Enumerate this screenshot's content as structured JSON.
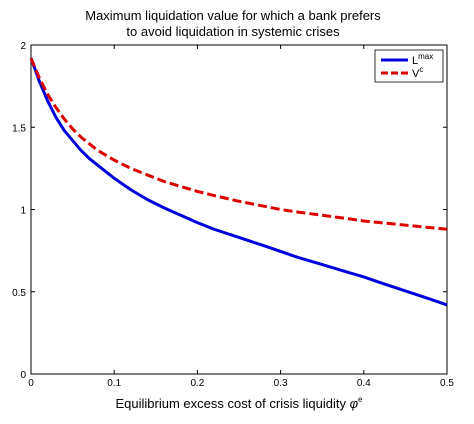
{
  "chart_data": {
    "type": "line",
    "title": [
      "Maximum liquidation value for which a bank prefers",
      "to avoid liquidation in systemic crises"
    ],
    "xlabel": "Equilibrium excess cost of crisis liquidity ",
    "xlabel_symbol": "φ",
    "xlabel_sup": "e",
    "ylabel": "",
    "xlim": [
      0,
      0.5
    ],
    "ylim": [
      0,
      2
    ],
    "xticks": [
      0,
      0.1,
      0.2,
      0.3,
      0.4,
      0.5
    ],
    "xtick_labels": [
      "0",
      "0.1",
      "0.2",
      "0.3",
      "0.4",
      "0.5"
    ],
    "yticks": [
      0,
      0.5,
      1,
      1.5,
      2
    ],
    "ytick_labels": [
      "0",
      "0.5",
      "1",
      "1.5",
      "2"
    ],
    "grid": false,
    "legend_position": "top-right",
    "series": [
      {
        "name": "L",
        "name_sup": "max",
        "color": "#0000dd",
        "style": "solid",
        "x": [
          0,
          0.01,
          0.02,
          0.03,
          0.04,
          0.05,
          0.06,
          0.07,
          0.08,
          0.09,
          0.1,
          0.12,
          0.14,
          0.16,
          0.18,
          0.2,
          0.22,
          0.25,
          0.28,
          0.3,
          0.32,
          0.35,
          0.38,
          0.4,
          0.42,
          0.45,
          0.48,
          0.5
        ],
        "y": [
          1.92,
          1.78,
          1.66,
          1.56,
          1.48,
          1.42,
          1.36,
          1.31,
          1.27,
          1.23,
          1.19,
          1.12,
          1.06,
          1.01,
          0.965,
          0.92,
          0.88,
          0.83,
          0.78,
          0.745,
          0.71,
          0.665,
          0.62,
          0.59,
          0.555,
          0.505,
          0.455,
          0.42
        ]
      },
      {
        "name": "V",
        "name_sup": "c",
        "color": "#dd0000",
        "style": "dashed",
        "x": [
          0,
          0.01,
          0.02,
          0.03,
          0.04,
          0.05,
          0.06,
          0.07,
          0.08,
          0.09,
          0.1,
          0.12,
          0.14,
          0.16,
          0.18,
          0.2,
          0.22,
          0.25,
          0.28,
          0.3,
          0.32,
          0.35,
          0.38,
          0.4,
          0.42,
          0.45,
          0.48,
          0.5
        ],
        "y": [
          1.92,
          1.8,
          1.7,
          1.62,
          1.55,
          1.49,
          1.44,
          1.4,
          1.36,
          1.33,
          1.3,
          1.25,
          1.21,
          1.17,
          1.14,
          1.11,
          1.085,
          1.05,
          1.02,
          1.0,
          0.985,
          0.965,
          0.945,
          0.93,
          0.92,
          0.905,
          0.89,
          0.88
        ]
      }
    ]
  }
}
